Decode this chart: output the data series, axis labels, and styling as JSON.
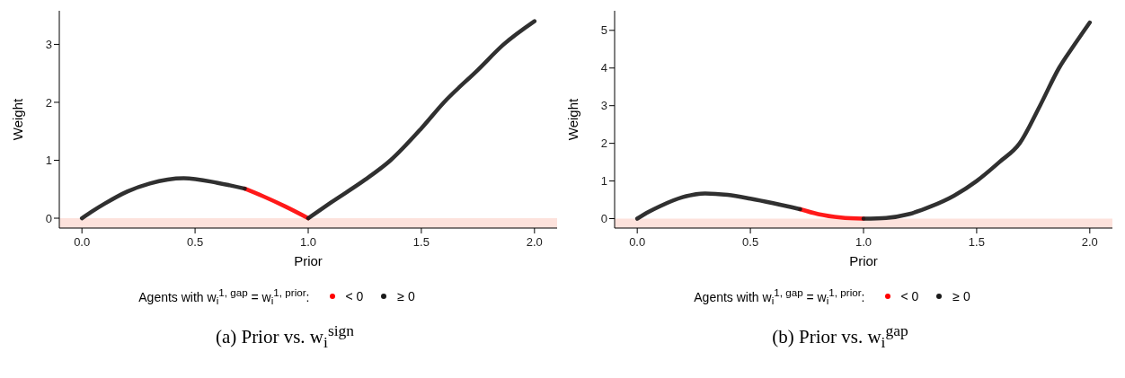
{
  "chart_data": [
    {
      "type": "line",
      "title": "(a) Prior vs. w$_{i}$$^{sign}$",
      "xlabel": "Prior",
      "ylabel": "Weight",
      "legend_title": "Agents with w$_{i}$$^{1, gap}$ = w$_{i}$$^{1, prior}$:",
      "legend": "bottom",
      "grid": false,
      "xlim": [
        -0.1,
        2.1
      ],
      "xticks": [
        {
          "value": 0,
          "label": "0.0"
        },
        {
          "value": 0.5,
          "label": "0.5"
        },
        {
          "value": 1,
          "label": "1.0"
        },
        {
          "value": 1.5,
          "label": "1.5"
        },
        {
          "value": 2,
          "label": "2.0"
        }
      ],
      "ylim": [
        -0.17,
        3.58
      ],
      "yticks": [
        0,
        1,
        2,
        3
      ],
      "bands": [
        {
          "axis": "y",
          "from": -0.17,
          "to": 0,
          "color": "#fde2dc"
        }
      ],
      "series": [
        {
          "name": "< 0",
          "color": "#ff0000",
          "x": [
            0.72,
            0.8,
            0.9,
            1.0
          ],
          "values": [
            0.51,
            0.38,
            0.2,
            0
          ]
        },
        {
          "name": "≥ 0",
          "color": "#1a1a1a",
          "x": [
            0,
            0.05,
            0.1,
            0.2,
            0.3,
            0.45,
            0.6,
            0.72,
            0.73,
            1.0,
            1.1,
            1.25,
            1.364,
            1.5,
            1.6,
            1.75,
            1.864,
            2.0
          ],
          "values": [
            0,
            0.13,
            0.25,
            0.46,
            0.6,
            0.69,
            0.61,
            0.51,
            null,
            0,
            0.27,
            0.66,
            1,
            1.55,
            2,
            2.56,
            3,
            3.4
          ]
        }
      ]
    },
    {
      "type": "line",
      "title": "(b) Prior vs. w$_{i}$$^{gap}$",
      "xlabel": "Prior",
      "ylabel": "Weight",
      "legend_title": "Agents with w$_{i}$$^{1, gap}$ = w$_{i}$$^{1, prior}$:",
      "legend": "bottom",
      "grid": false,
      "xlim": [
        -0.1,
        2.1
      ],
      "xticks": [
        {
          "value": 0,
          "label": "0.0"
        },
        {
          "value": 0.5,
          "label": "0.5"
        },
        {
          "value": 1,
          "label": "1.0"
        },
        {
          "value": 1.5,
          "label": "1.5"
        },
        {
          "value": 2,
          "label": "2.0"
        }
      ],
      "ylim": [
        -0.25,
        5.52
      ],
      "yticks": [
        0,
        1,
        2,
        3,
        4,
        5
      ],
      "bands": [
        {
          "axis": "y",
          "from": -0.25,
          "to": 0,
          "color": "#fde2dc"
        }
      ],
      "series": [
        {
          "name": "< 0",
          "color": "#ff0000",
          "x": [
            0.72,
            0.8,
            0.9,
            1.0
          ],
          "values": [
            0.25,
            0.12,
            0.03,
            0
          ]
        },
        {
          "name": "≥ 0",
          "color": "#1a1a1a",
          "x": [
            0,
            0.05,
            0.1,
            0.2,
            0.3,
            0.4,
            0.5,
            0.6,
            0.72,
            0.73,
            1.0,
            1.1,
            1.2,
            1.3,
            1.4,
            1.5,
            1.6,
            1.69,
            1.78,
            1.864,
            1.93,
            2.0
          ],
          "values": [
            0,
            0.18,
            0.33,
            0.57,
            0.67,
            0.63,
            0.53,
            0.41,
            0.25,
            null,
            0,
            0.02,
            0.12,
            0.33,
            0.61,
            1,
            1.5,
            2,
            3,
            4,
            4.6,
            5.21
          ]
        }
      ]
    }
  ]
}
